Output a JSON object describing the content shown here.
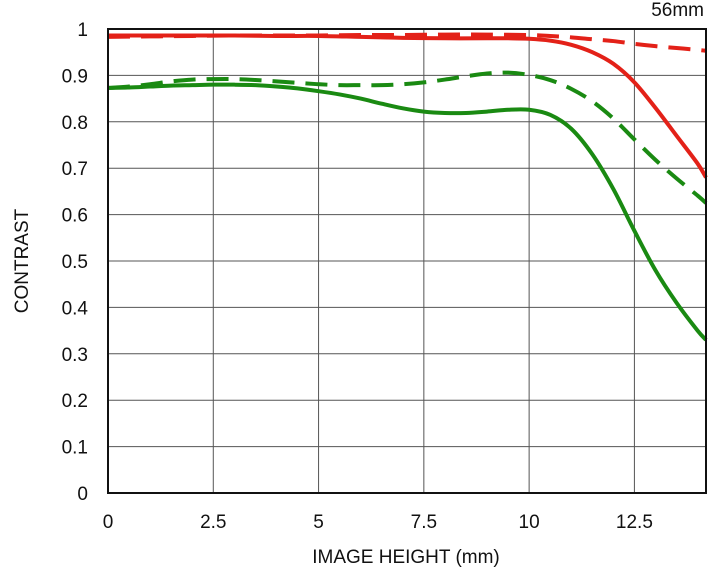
{
  "chart_data": {
    "type": "line",
    "title": "",
    "corner_label": "56mm",
    "xlabel": "IMAGE HEIGHT (mm)",
    "ylabel": "CONTRAST",
    "xlim": [
      0,
      14.2
    ],
    "ylim": [
      0,
      1
    ],
    "grid": true,
    "legend": "none",
    "x_ticks": [
      0,
      2.5,
      5,
      7.5,
      10,
      12.5
    ],
    "x_tick_labels": [
      "0",
      "2.5",
      "5",
      "7.5",
      "10",
      "12.5"
    ],
    "y_ticks": [
      0,
      0.1,
      0.2,
      0.3,
      0.4,
      0.5,
      0.6,
      0.7,
      0.8,
      0.9,
      1
    ],
    "y_tick_labels": [
      "0",
      "0.1",
      "0.2",
      "0.3",
      "0.4",
      "0.5",
      "0.6",
      "0.7",
      "0.8",
      "0.9",
      "1"
    ],
    "series": [
      {
        "color": "#e32118",
        "dash": "solid",
        "x": [
          0,
          1,
          2,
          3,
          4,
          5,
          6,
          7,
          8,
          9,
          9.5,
          10,
          10.5,
          11,
          11.5,
          12,
          12.5,
          13,
          13.5,
          14,
          14.2
        ],
        "y": [
          0.986,
          0.986,
          0.986,
          0.986,
          0.985,
          0.985,
          0.983,
          0.981,
          0.98,
          0.98,
          0.98,
          0.979,
          0.975,
          0.966,
          0.95,
          0.925,
          0.885,
          0.83,
          0.77,
          0.71,
          0.68
        ]
      },
      {
        "color": "#e32118",
        "dash": "dashed",
        "x": [
          0,
          1,
          2,
          3,
          4,
          5,
          6,
          7,
          8,
          9,
          10,
          10.5,
          11,
          11.5,
          12,
          12.5,
          13,
          13.5,
          14,
          14.2
        ],
        "y": [
          0.983,
          0.984,
          0.985,
          0.986,
          0.986,
          0.986,
          0.987,
          0.987,
          0.988,
          0.988,
          0.987,
          0.985,
          0.982,
          0.978,
          0.974,
          0.968,
          0.963,
          0.959,
          0.955,
          0.953
        ]
      },
      {
        "color": "#1a8a12",
        "dash": "solid",
        "x": [
          0,
          0.5,
          1,
          1.5,
          2,
          2.5,
          3,
          3.5,
          4,
          4.5,
          5,
          5.5,
          6,
          6.5,
          7,
          7.5,
          8,
          8.5,
          9,
          9.5,
          10,
          10.5,
          11,
          11.5,
          12,
          12.5,
          13,
          13.5,
          14,
          14.2
        ],
        "y": [
          0.873,
          0.874,
          0.876,
          0.878,
          0.879,
          0.88,
          0.88,
          0.879,
          0.876,
          0.872,
          0.866,
          0.859,
          0.85,
          0.839,
          0.829,
          0.822,
          0.819,
          0.819,
          0.822,
          0.826,
          0.826,
          0.815,
          0.785,
          0.73,
          0.655,
          0.565,
          0.48,
          0.41,
          0.35,
          0.33
        ]
      },
      {
        "color": "#1a8a12",
        "dash": "dashed",
        "x": [
          0,
          0.5,
          1,
          1.5,
          2,
          2.5,
          3,
          3.5,
          4,
          4.5,
          5,
          5.5,
          6,
          6.5,
          7,
          7.5,
          8,
          8.5,
          9,
          9.5,
          10,
          10.5,
          11,
          11.5,
          12,
          12.5,
          13,
          13.5,
          14,
          14.2
        ],
        "y": [
          0.873,
          0.876,
          0.881,
          0.887,
          0.891,
          0.892,
          0.892,
          0.89,
          0.887,
          0.884,
          0.881,
          0.879,
          0.879,
          0.879,
          0.881,
          0.885,
          0.891,
          0.898,
          0.904,
          0.906,
          0.901,
          0.89,
          0.871,
          0.844,
          0.807,
          0.762,
          0.718,
          0.678,
          0.641,
          0.625
        ]
      }
    ]
  }
}
